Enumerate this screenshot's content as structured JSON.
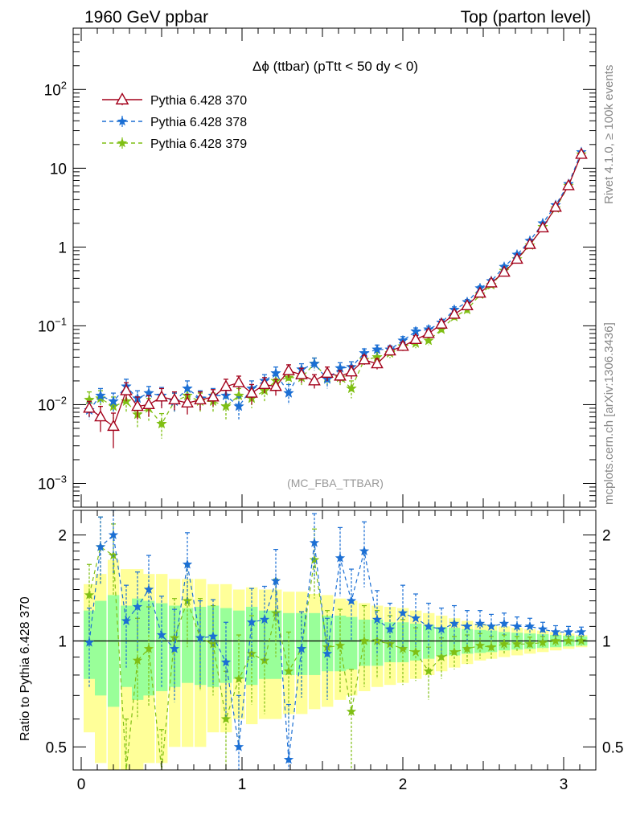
{
  "header": {
    "left_label": "1960 GeV ppbar",
    "right_label": "Top (parton level)"
  },
  "side_labels": {
    "rivet": "Rivet 4.1.0, ≥ 100k events",
    "mcplots": "mcplots.cern.ch [arXiv:1306.3436]"
  },
  "plot": {
    "title": "Δϕ (ttbar) (pTtt < 50 dy < 0)",
    "watermark": "(MC_FBA_TTBAR)",
    "ratio_ylabel": "Ratio to Pythia 6.428 370"
  },
  "colors": {
    "s370": "#a3001a",
    "s378": "#1b6fd4",
    "s379": "#7fbf14",
    "band_inner": "#99ff99",
    "band_outer": "#ffff99"
  },
  "chart_data": [
    {
      "type": "line",
      "scale": "log",
      "title": "Δϕ (ttbar) (pTtt < 50 dy < 0)",
      "xlim": [
        -0.05,
        3.2
      ],
      "ylim": [
        0.0005,
        600
      ],
      "y_ticks": [
        {
          "value": 0.001,
          "label": "10^-3"
        },
        {
          "value": 0.01,
          "label": "10^-2"
        },
        {
          "value": 0.1,
          "label": "10^-1"
        },
        {
          "value": 1,
          "label": "1"
        },
        {
          "value": 10,
          "label": "10"
        },
        {
          "value": 100,
          "label": "10^2"
        }
      ],
      "x": [
        0.05,
        0.12,
        0.2,
        0.28,
        0.35,
        0.42,
        0.5,
        0.58,
        0.66,
        0.74,
        0.82,
        0.9,
        0.98,
        1.06,
        1.14,
        1.21,
        1.29,
        1.37,
        1.45,
        1.53,
        1.61,
        1.68,
        1.76,
        1.84,
        1.92,
        2.0,
        2.08,
        2.16,
        2.24,
        2.32,
        2.4,
        2.48,
        2.55,
        2.63,
        2.71,
        2.79,
        2.87,
        2.95,
        3.03,
        3.11
      ],
      "legend": [
        {
          "key": "s370",
          "name": "Pythia 6.428 370",
          "marker": "triangle",
          "dash": "solid"
        },
        {
          "key": "s378",
          "name": "Pythia 6.428 378",
          "marker": "star",
          "dash": "dashed"
        },
        {
          "key": "s379",
          "name": "Pythia 6.428 379",
          "marker": "star",
          "dash": "dashed"
        }
      ],
      "series": [
        {
          "name": "Pythia 6.428 370",
          "key": "s370",
          "values": [
            0.009,
            0.007,
            0.0053,
            0.015,
            0.0095,
            0.01,
            0.0125,
            0.0115,
            0.0105,
            0.0115,
            0.0125,
            0.017,
            0.019,
            0.014,
            0.018,
            0.017,
            0.027,
            0.024,
            0.02,
            0.025,
            0.023,
            0.026,
            0.037,
            0.033,
            0.048,
            0.055,
            0.067,
            0.08,
            0.105,
            0.14,
            0.18,
            0.26,
            0.35,
            0.48,
            0.7,
            1.08,
            1.75,
            3.2,
            6.0,
            15.0
          ],
          "errors": [
            0.002,
            0.0025,
            0.0025,
            0.004,
            0.003,
            0.003,
            0.0035,
            0.003,
            0.003,
            0.003,
            0.003,
            0.004,
            0.004,
            0.004,
            0.004,
            0.004,
            0.005,
            0.005,
            0.004,
            0.005,
            0.004,
            0.005,
            0.005,
            0.005,
            0.006,
            0.007,
            0.008,
            0.009,
            0.01,
            0.013,
            0.015,
            0.02,
            0.025,
            0.03,
            0.04,
            0.06,
            0.08,
            0.12,
            0.2,
            0.4
          ]
        },
        {
          "name": "Pythia 6.428 378",
          "key": "s378",
          "values": [
            0.0085,
            0.013,
            0.011,
            0.017,
            0.012,
            0.014,
            0.013,
            0.011,
            0.016,
            0.012,
            0.013,
            0.013,
            0.0095,
            0.016,
            0.02,
            0.025,
            0.014,
            0.028,
            0.033,
            0.021,
            0.029,
            0.03,
            0.045,
            0.05,
            0.05,
            0.065,
            0.085,
            0.09,
            0.11,
            0.16,
            0.2,
            0.3,
            0.37,
            0.56,
            0.8,
            1.2,
            2.0,
            3.4,
            6.3,
            16.0
          ],
          "errors": [
            0.002,
            0.003,
            0.003,
            0.004,
            0.003,
            0.003,
            0.0035,
            0.003,
            0.004,
            0.003,
            0.003,
            0.003,
            0.003,
            0.004,
            0.004,
            0.005,
            0.004,
            0.005,
            0.006,
            0.005,
            0.005,
            0.005,
            0.006,
            0.007,
            0.006,
            0.008,
            0.009,
            0.009,
            0.011,
            0.014,
            0.016,
            0.02,
            0.025,
            0.03,
            0.04,
            0.06,
            0.08,
            0.12,
            0.2,
            0.4
          ]
        },
        {
          "name": "Pythia 6.428 379",
          "key": "s379",
          "values": [
            0.0115,
            0.012,
            0.0095,
            0.011,
            0.0075,
            0.009,
            0.0057,
            0.011,
            0.013,
            0.011,
            0.011,
            0.0095,
            0.013,
            0.012,
            0.015,
            0.02,
            0.022,
            0.022,
            0.033,
            0.022,
            0.022,
            0.016,
            0.037,
            0.04,
            0.045,
            0.055,
            0.06,
            0.065,
            0.09,
            0.13,
            0.16,
            0.25,
            0.33,
            0.5,
            0.7,
            1.05,
            1.8,
            3.1,
            6.0,
            15.0
          ],
          "errors": [
            0.003,
            0.003,
            0.003,
            0.003,
            0.0025,
            0.003,
            0.002,
            0.003,
            0.003,
            0.003,
            0.003,
            0.003,
            0.003,
            0.003,
            0.004,
            0.004,
            0.005,
            0.005,
            0.006,
            0.005,
            0.005,
            0.004,
            0.005,
            0.006,
            0.006,
            0.007,
            0.008,
            0.008,
            0.01,
            0.013,
            0.015,
            0.02,
            0.025,
            0.03,
            0.04,
            0.06,
            0.08,
            0.12,
            0.2,
            0.4
          ]
        }
      ]
    },
    {
      "type": "line",
      "scale": "log",
      "ylabel": "Ratio to Pythia 6.428 370",
      "xlim": [
        -0.05,
        3.2
      ],
      "ylim": [
        0.43,
        2.35
      ],
      "x_ticks": [
        {
          "value": 0,
          "label": "0"
        },
        {
          "value": 1,
          "label": "1"
        },
        {
          "value": 2,
          "label": "2"
        },
        {
          "value": 3,
          "label": "3"
        }
      ],
      "y_ticks": [
        {
          "value": 0.5,
          "label": "0.5"
        },
        {
          "value": 1,
          "label": "1"
        },
        {
          "value": 2,
          "label": "2"
        }
      ],
      "band_inner_halfwidth": [
        0.22,
        0.3,
        0.35,
        0.26,
        0.32,
        0.3,
        0.28,
        0.26,
        0.24,
        0.25,
        0.26,
        0.24,
        0.22,
        0.25,
        0.22,
        0.22,
        0.2,
        0.2,
        0.2,
        0.18,
        0.18,
        0.17,
        0.15,
        0.15,
        0.13,
        0.13,
        0.12,
        0.11,
        0.095,
        0.09,
        0.08,
        0.075,
        0.07,
        0.06,
        0.055,
        0.05,
        0.045,
        0.04,
        0.035,
        0.03
      ],
      "band_outer_halfwidth": [
        0.45,
        0.55,
        0.7,
        0.6,
        0.6,
        0.55,
        0.55,
        0.5,
        0.5,
        0.5,
        0.45,
        0.45,
        0.4,
        0.42,
        0.4,
        0.4,
        0.38,
        0.38,
        0.36,
        0.35,
        0.32,
        0.3,
        0.28,
        0.26,
        0.25,
        0.24,
        0.22,
        0.2,
        0.18,
        0.16,
        0.14,
        0.12,
        0.11,
        0.1,
        0.09,
        0.08,
        0.07,
        0.06,
        0.05,
        0.04
      ],
      "series": [
        {
          "name": "Pythia 6.428 378",
          "key": "s378",
          "values": [
            0.99,
            1.85,
            2.0,
            1.14,
            1.25,
            1.4,
            1.04,
            0.95,
            1.65,
            1.02,
            1.03,
            0.87,
            0.5,
            1.13,
            1.15,
            1.48,
            0.46,
            0.95,
            1.9,
            0.92,
            1.72,
            1.3,
            1.8,
            1.15,
            1.08,
            1.2,
            1.16,
            1.1,
            1.08,
            1.12,
            1.1,
            1.12,
            1.1,
            1.12,
            1.1,
            1.1,
            1.08,
            1.06,
            1.06,
            1.06
          ],
          "errors": [
            0.25,
            0.4,
            0.45,
            0.3,
            0.32,
            0.35,
            0.3,
            0.28,
            0.38,
            0.28,
            0.28,
            0.26,
            0.2,
            0.28,
            0.28,
            0.34,
            0.2,
            0.26,
            0.4,
            0.24,
            0.38,
            0.3,
            0.38,
            0.24,
            0.2,
            0.24,
            0.2,
            0.18,
            0.16,
            0.14,
            0.12,
            0.1,
            0.09,
            0.08,
            0.07,
            0.06,
            0.05,
            0.045,
            0.04,
            0.035
          ]
        },
        {
          "name": "Pythia 6.428 379",
          "key": "s379",
          "values": [
            1.35,
            1.85,
            1.75,
            0.4,
            0.88,
            0.95,
            0.38,
            1.02,
            1.3,
            1.02,
            0.98,
            0.6,
            0.78,
            0.92,
            0.88,
            1.2,
            0.82,
            0.95,
            1.7,
            0.96,
            0.97,
            0.63,
            1.0,
            1.0,
            0.98,
            0.95,
            0.93,
            0.82,
            0.9,
            0.93,
            0.95,
            0.97,
            0.96,
            0.98,
            0.98,
            0.98,
            0.99,
            1.0,
            1.0,
            1.0
          ],
          "errors": [
            0.3,
            0.4,
            0.4,
            0.2,
            0.28,
            0.3,
            0.18,
            0.3,
            0.34,
            0.3,
            0.28,
            0.22,
            0.26,
            0.26,
            0.26,
            0.3,
            0.24,
            0.26,
            0.38,
            0.26,
            0.26,
            0.2,
            0.26,
            0.22,
            0.2,
            0.2,
            0.16,
            0.14,
            0.12,
            0.1,
            0.09,
            0.08,
            0.07,
            0.06,
            0.05,
            0.045,
            0.04,
            0.035,
            0.03,
            0.03
          ]
        }
      ]
    }
  ]
}
